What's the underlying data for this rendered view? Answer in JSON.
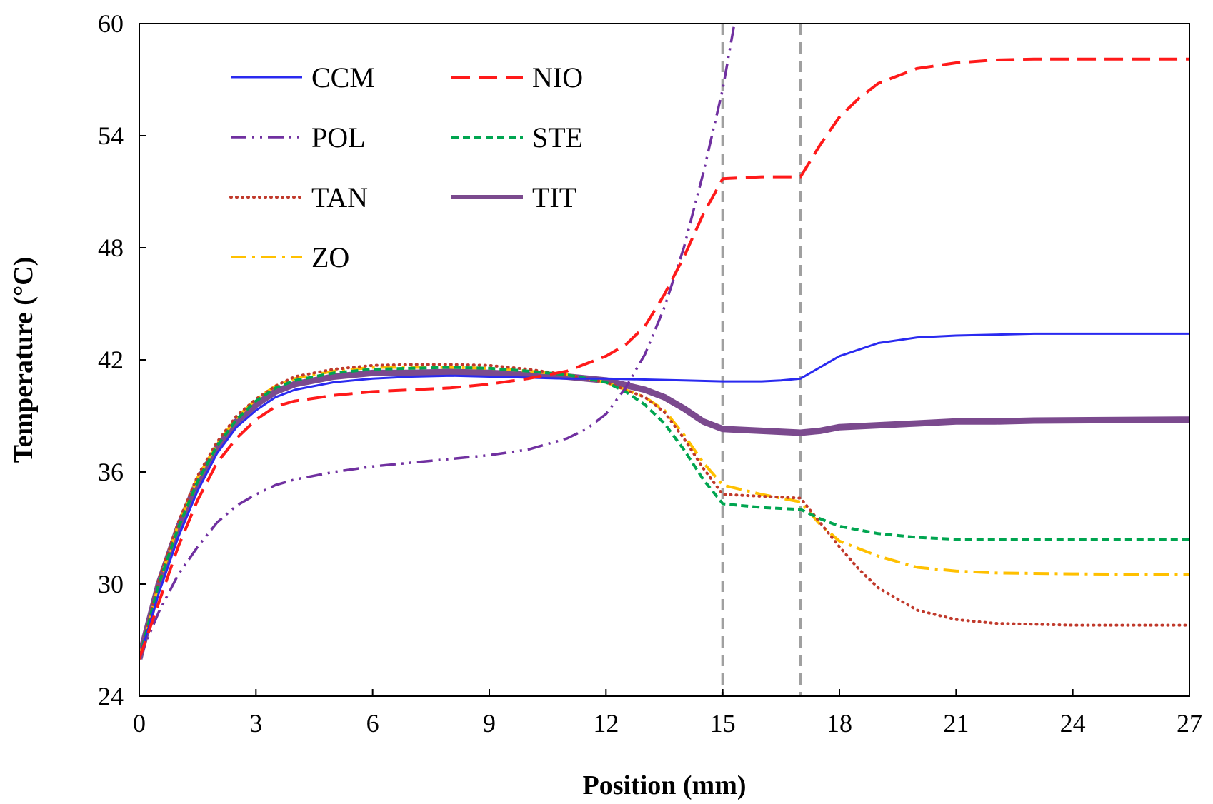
{
  "chart_data": {
    "type": "line",
    "title": "",
    "xlabel": "Position (mm)",
    "ylabel": "Temperature (°C)",
    "xlim": [
      0,
      27
    ],
    "ylim": [
      24,
      60
    ],
    "xticks": [
      0,
      3,
      6,
      9,
      12,
      15,
      18,
      21,
      24,
      27
    ],
    "yticks": [
      24,
      30,
      36,
      42,
      48,
      54,
      60
    ],
    "grid": false,
    "legend_position": "top-left",
    "reference_lines": {
      "style": "gray dashed vertical",
      "x": [
        15,
        17
      ]
    },
    "series": [
      {
        "name": "CCM",
        "color": "#2a2af0",
        "style": "solid",
        "points": [
          [
            0,
            26
          ],
          [
            0.5,
            29.5
          ],
          [
            1,
            32.5
          ],
          [
            1.5,
            35
          ],
          [
            2,
            37
          ],
          [
            2.5,
            38.4
          ],
          [
            3,
            39.3
          ],
          [
            3.5,
            40
          ],
          [
            4,
            40.4
          ],
          [
            5,
            40.8
          ],
          [
            6,
            41
          ],
          [
            7,
            41.1
          ],
          [
            8,
            41.15
          ],
          [
            9,
            41.1
          ],
          [
            10,
            41.05
          ],
          [
            11,
            41
          ],
          [
            12,
            41
          ],
          [
            13,
            40.95
          ],
          [
            14,
            40.9
          ],
          [
            15,
            40.85
          ],
          [
            16,
            40.85
          ],
          [
            16.5,
            40.9
          ],
          [
            17,
            41
          ],
          [
            17.5,
            41.6
          ],
          [
            18,
            42.2
          ],
          [
            19,
            42.9
          ],
          [
            20,
            43.2
          ],
          [
            21,
            43.3
          ],
          [
            22,
            43.35
          ],
          [
            23,
            43.4
          ],
          [
            27,
            43.4
          ]
        ]
      },
      {
        "name": "NIO",
        "color": "#ff1a1a",
        "style": "dash",
        "points": [
          [
            0,
            26
          ],
          [
            0.5,
            29
          ],
          [
            1,
            32
          ],
          [
            1.5,
            34.5
          ],
          [
            2,
            36.5
          ],
          [
            2.5,
            37.8
          ],
          [
            3,
            38.8
          ],
          [
            3.5,
            39.5
          ],
          [
            4,
            39.8
          ],
          [
            5,
            40.1
          ],
          [
            6,
            40.3
          ],
          [
            7,
            40.4
          ],
          [
            8,
            40.5
          ],
          [
            9,
            40.7
          ],
          [
            10,
            41
          ],
          [
            11,
            41.4
          ],
          [
            12,
            42.2
          ],
          [
            12.5,
            42.8
          ],
          [
            13,
            43.8
          ],
          [
            13.5,
            45.5
          ],
          [
            14,
            47.5
          ],
          [
            14.5,
            49.8
          ],
          [
            15,
            51.7
          ],
          [
            16,
            51.8
          ],
          [
            17,
            51.8
          ],
          [
            17.5,
            53.5
          ],
          [
            18,
            55
          ],
          [
            18.5,
            56
          ],
          [
            19,
            56.8
          ],
          [
            20,
            57.6
          ],
          [
            21,
            57.9
          ],
          [
            22,
            58.05
          ],
          [
            23,
            58.1
          ],
          [
            27,
            58.1
          ]
        ]
      },
      {
        "name": "POL",
        "color": "#7030a0",
        "style": "dashdotdot",
        "points": [
          [
            0,
            26
          ],
          [
            0.5,
            28.5
          ],
          [
            1,
            30.5
          ],
          [
            1.5,
            32
          ],
          [
            2,
            33.3
          ],
          [
            2.5,
            34.2
          ],
          [
            3,
            34.8
          ],
          [
            3.5,
            35.3
          ],
          [
            4,
            35.6
          ],
          [
            5,
            36
          ],
          [
            6,
            36.3
          ],
          [
            7,
            36.5
          ],
          [
            8,
            36.7
          ],
          [
            9,
            36.9
          ],
          [
            10,
            37.2
          ],
          [
            11,
            37.8
          ],
          [
            11.5,
            38.3
          ],
          [
            12,
            39.1
          ],
          [
            12.5,
            40.5
          ],
          [
            13,
            42.3
          ],
          [
            13.5,
            44.8
          ],
          [
            14,
            48
          ],
          [
            14.5,
            52
          ],
          [
            15,
            56.5
          ],
          [
            15.3,
            60
          ]
        ]
      },
      {
        "name": "STE",
        "color": "#00a550",
        "style": "shortdash",
        "points": [
          [
            0,
            26
          ],
          [
            0.5,
            30
          ],
          [
            1,
            33
          ],
          [
            1.5,
            35.5
          ],
          [
            2,
            37.4
          ],
          [
            2.5,
            38.8
          ],
          [
            3,
            39.8
          ],
          [
            3.5,
            40.5
          ],
          [
            4,
            40.9
          ],
          [
            5,
            41.3
          ],
          [
            6,
            41.5
          ],
          [
            7,
            41.55
          ],
          [
            8,
            41.6
          ],
          [
            9,
            41.55
          ],
          [
            10,
            41.4
          ],
          [
            11,
            41.2
          ],
          [
            12,
            40.8
          ],
          [
            12.5,
            40.3
          ],
          [
            13,
            39.6
          ],
          [
            13.5,
            38.6
          ],
          [
            14,
            37.2
          ],
          [
            14.5,
            35.6
          ],
          [
            15,
            34.3
          ],
          [
            16,
            34.1
          ],
          [
            17,
            34
          ],
          [
            17.5,
            33.5
          ],
          [
            18,
            33.1
          ],
          [
            19,
            32.7
          ],
          [
            20,
            32.5
          ],
          [
            21,
            32.4
          ],
          [
            27,
            32.4
          ]
        ]
      },
      {
        "name": "TAN",
        "color": "#c0392b",
        "style": "dot",
        "points": [
          [
            0,
            26
          ],
          [
            0.5,
            30.2
          ],
          [
            1,
            33.3
          ],
          [
            1.5,
            35.8
          ],
          [
            2,
            37.6
          ],
          [
            2.5,
            39
          ],
          [
            3,
            39.9
          ],
          [
            3.5,
            40.6
          ],
          [
            4,
            41.1
          ],
          [
            5,
            41.5
          ],
          [
            6,
            41.7
          ],
          [
            7,
            41.75
          ],
          [
            8,
            41.75
          ],
          [
            9,
            41.7
          ],
          [
            10,
            41.5
          ],
          [
            11,
            41.2
          ],
          [
            12,
            40.8
          ],
          [
            13,
            40
          ],
          [
            13.5,
            39.2
          ],
          [
            14,
            37.8
          ],
          [
            14.5,
            36.2
          ],
          [
            15,
            34.8
          ],
          [
            16,
            34.7
          ],
          [
            17,
            34.6
          ],
          [
            17.5,
            33.3
          ],
          [
            18,
            32
          ],
          [
            18.5,
            30.8
          ],
          [
            19,
            29.8
          ],
          [
            20,
            28.6
          ],
          [
            21,
            28.1
          ],
          [
            22,
            27.9
          ],
          [
            24,
            27.8
          ],
          [
            27,
            27.8
          ]
        ]
      },
      {
        "name": "TIT",
        "color": "#7b4a8e",
        "style": "thick-solid",
        "points": [
          [
            0,
            26
          ],
          [
            0.5,
            30
          ],
          [
            1,
            33
          ],
          [
            1.5,
            35.5
          ],
          [
            2,
            37.3
          ],
          [
            2.5,
            38.7
          ],
          [
            3,
            39.6
          ],
          [
            3.5,
            40.3
          ],
          [
            4,
            40.7
          ],
          [
            5,
            41.1
          ],
          [
            6,
            41.3
          ],
          [
            7,
            41.3
          ],
          [
            8,
            41.35
          ],
          [
            9,
            41.3
          ],
          [
            10,
            41.2
          ],
          [
            11,
            41.1
          ],
          [
            12,
            40.9
          ],
          [
            13,
            40.4
          ],
          [
            13.5,
            40
          ],
          [
            14,
            39.4
          ],
          [
            14.5,
            38.7
          ],
          [
            15,
            38.3
          ],
          [
            16,
            38.2
          ],
          [
            17,
            38.1
          ],
          [
            17.5,
            38.2
          ],
          [
            18,
            38.4
          ],
          [
            19,
            38.5
          ],
          [
            20,
            38.6
          ],
          [
            21,
            38.7
          ],
          [
            22,
            38.7
          ],
          [
            23,
            38.75
          ],
          [
            27,
            38.8
          ]
        ]
      },
      {
        "name": "ZO",
        "color": "#ffc000",
        "style": "dashdot",
        "points": [
          [
            0,
            26
          ],
          [
            0.5,
            30
          ],
          [
            1,
            33.2
          ],
          [
            1.5,
            35.7
          ],
          [
            2,
            37.5
          ],
          [
            2.5,
            38.9
          ],
          [
            3,
            39.9
          ],
          [
            3.5,
            40.6
          ],
          [
            4,
            41
          ],
          [
            5,
            41.4
          ],
          [
            6,
            41.6
          ],
          [
            7,
            41.6
          ],
          [
            8,
            41.6
          ],
          [
            9,
            41.55
          ],
          [
            10,
            41.4
          ],
          [
            11,
            41.2
          ],
          [
            12,
            40.8
          ],
          [
            13,
            40
          ],
          [
            13.5,
            39.3
          ],
          [
            14,
            38
          ],
          [
            14.5,
            36.5
          ],
          [
            15,
            35.3
          ],
          [
            16,
            34.8
          ],
          [
            17,
            34.4
          ],
          [
            17.5,
            33.2
          ],
          [
            18,
            32.3
          ],
          [
            19,
            31.5
          ],
          [
            20,
            30.9
          ],
          [
            21,
            30.7
          ],
          [
            22,
            30.6
          ],
          [
            24,
            30.55
          ],
          [
            27,
            30.5
          ]
        ]
      }
    ]
  }
}
